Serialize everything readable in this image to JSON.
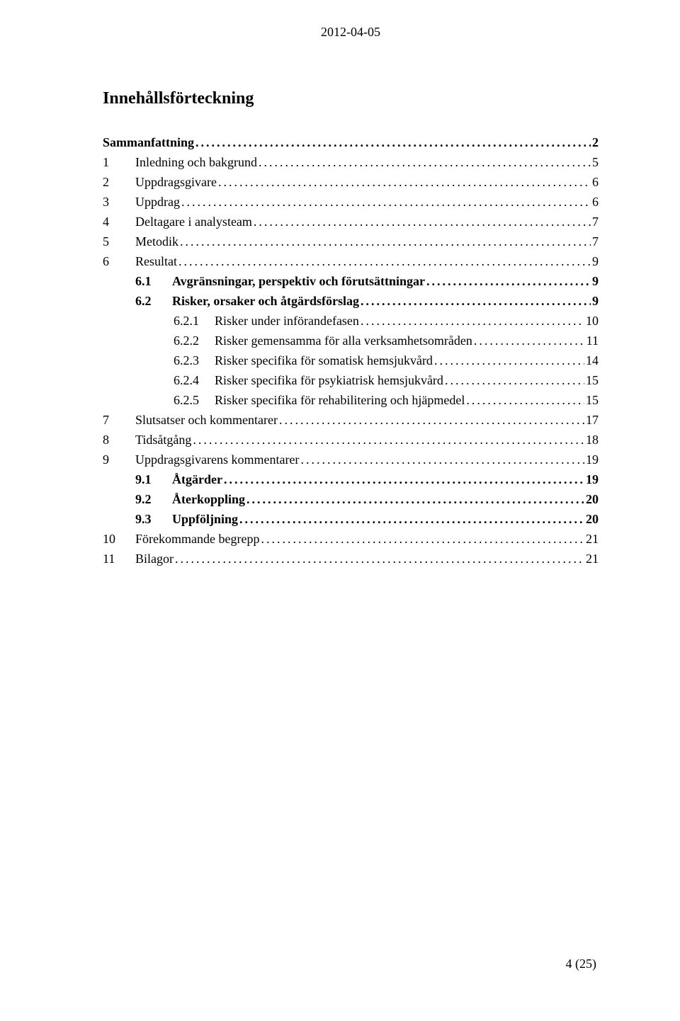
{
  "header": {
    "date": "2012-04-05"
  },
  "title": "Innehållsförteckning",
  "toc": [
    {
      "level": 0,
      "bold": true,
      "num": "",
      "label": "Sammanfattning",
      "page": "2"
    },
    {
      "level": 0,
      "bold": false,
      "num": "1",
      "label": "Inledning och bakgrund",
      "page": "5"
    },
    {
      "level": 0,
      "bold": false,
      "num": "2",
      "label": "Uppdragsgivare",
      "page": "6"
    },
    {
      "level": 0,
      "bold": false,
      "num": "3",
      "label": "Uppdrag",
      "page": "6"
    },
    {
      "level": 0,
      "bold": false,
      "num": "4",
      "label": "Deltagare i analysteam",
      "page": "7"
    },
    {
      "level": 0,
      "bold": false,
      "num": "5",
      "label": "Metodik",
      "page": "7"
    },
    {
      "level": 0,
      "bold": false,
      "num": "6",
      "label": "Resultat",
      "page": "9"
    },
    {
      "level": 1,
      "bold": true,
      "num": "6.1",
      "label": "Avgränsningar, perspektiv och förutsättningar",
      "page": "9"
    },
    {
      "level": 1,
      "bold": true,
      "num": "6.2",
      "label": "Risker, orsaker och åtgärdsförslag",
      "page": "9"
    },
    {
      "level": 2,
      "bold": false,
      "num": "6.2.1",
      "label": "Risker under införandefasen",
      "page": "10"
    },
    {
      "level": 2,
      "bold": false,
      "num": "6.2.2",
      "label": "Risker gemensamma för alla verksamhetsområden",
      "page": "11"
    },
    {
      "level": 2,
      "bold": false,
      "num": "6.2.3",
      "label": "Risker specifika för somatisk hemsjukvård",
      "page": "14"
    },
    {
      "level": 2,
      "bold": false,
      "num": "6.2.4",
      "label": "Risker specifika för psykiatrisk hemsjukvård",
      "page": "15"
    },
    {
      "level": 2,
      "bold": false,
      "num": "6.2.5",
      "label": "Risker specifika för rehabilitering och hjäpmedel",
      "page": "15"
    },
    {
      "level": 0,
      "bold": false,
      "num": "7",
      "label": "Slutsatser och kommentarer",
      "page": "17"
    },
    {
      "level": 0,
      "bold": false,
      "num": "8",
      "label": "Tidsåtgång",
      "page": "18"
    },
    {
      "level": 0,
      "bold": false,
      "num": "9",
      "label": "Uppdragsgivarens kommentarer",
      "page": "19"
    },
    {
      "level": 1,
      "bold": true,
      "num": "9.1",
      "label": "Åtgärder",
      "page": "19"
    },
    {
      "level": 1,
      "bold": true,
      "num": "9.2",
      "label": "Återkoppling",
      "page": "20"
    },
    {
      "level": 1,
      "bold": true,
      "num": "9.3",
      "label": "Uppföljning",
      "page": "20"
    },
    {
      "level": 0,
      "bold": false,
      "num": "10",
      "label": "Förekommande begrepp",
      "page": "21"
    },
    {
      "level": 0,
      "bold": false,
      "num": "11",
      "label": "Bilagor",
      "page": "21"
    }
  ],
  "footer": {
    "page_label": "4 (25)"
  },
  "style": {
    "background_color": "#ffffff",
    "text_color": "#000000",
    "font_family": "Times New Roman",
    "title_fontsize": 24,
    "body_fontsize": 18
  }
}
